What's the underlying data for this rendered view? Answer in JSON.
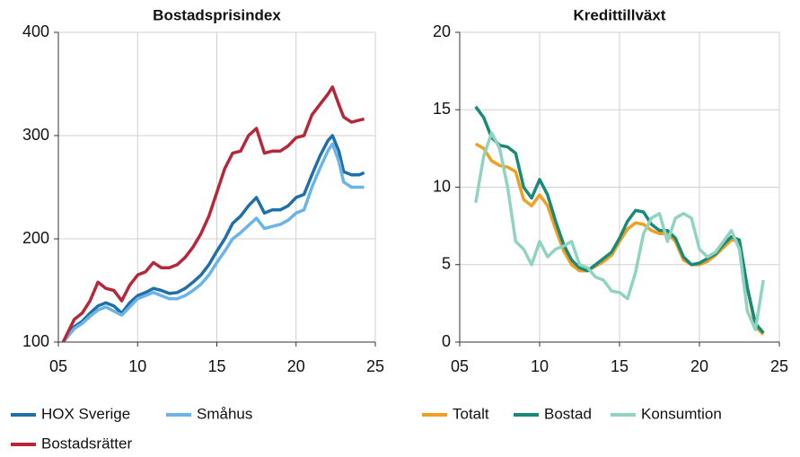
{
  "chart_data": [
    {
      "type": "line",
      "title": "Bostadsprisindex",
      "x": [
        2005.3,
        2006,
        2006.5,
        2007,
        2007.5,
        2008,
        2008.5,
        2009,
        2009.5,
        2010,
        2010.5,
        2011,
        2011.5,
        2012,
        2012.5,
        2013,
        2013.5,
        2014,
        2014.5,
        2015,
        2015.5,
        2016,
        2016.5,
        2017,
        2017.5,
        2018,
        2018.5,
        2019,
        2019.5,
        2020,
        2020.5,
        2021,
        2021.5,
        2022,
        2022.3,
        2022.7,
        2023,
        2023.5,
        2024,
        2024.3
      ],
      "series": [
        {
          "name": "HOX Sverige",
          "color": "#1f6fa8",
          "values": [
            100,
            115,
            120,
            128,
            135,
            138,
            135,
            128,
            138,
            145,
            148,
            152,
            150,
            147,
            148,
            152,
            158,
            165,
            175,
            188,
            200,
            215,
            222,
            232,
            240,
            225,
            228,
            228,
            232,
            240,
            243,
            262,
            280,
            295,
            300,
            285,
            265,
            262,
            262,
            264
          ]
        },
        {
          "name": "Småhus",
          "color": "#6ab4e8",
          "values": [
            100,
            113,
            118,
            125,
            131,
            134,
            130,
            126,
            134,
            142,
            145,
            148,
            145,
            142,
            142,
            145,
            150,
            156,
            165,
            177,
            188,
            200,
            206,
            213,
            220,
            210,
            212,
            214,
            218,
            225,
            228,
            250,
            268,
            285,
            292,
            275,
            255,
            250,
            250,
            250
          ]
        },
        {
          "name": "Bostadsrätter",
          "color": "#b5283a",
          "values": [
            100,
            122,
            128,
            140,
            158,
            152,
            150,
            140,
            155,
            165,
            168,
            177,
            172,
            172,
            175,
            182,
            192,
            205,
            222,
            245,
            268,
            283,
            285,
            300,
            307,
            283,
            285,
            285,
            290,
            298,
            300,
            320,
            330,
            340,
            347,
            330,
            318,
            313,
            315,
            316
          ]
        }
      ],
      "xlim": [
        2005,
        2025
      ],
      "xticks": [
        {
          "value": 2005,
          "label": "05"
        },
        {
          "value": 2010,
          "label": "10"
        },
        {
          "value": 2015,
          "label": "15"
        },
        {
          "value": 2020,
          "label": "20"
        },
        {
          "value": 2025,
          "label": "25"
        }
      ],
      "ylim": [
        100,
        400
      ],
      "yticks": [
        100,
        200,
        300,
        400
      ],
      "grid": true
    },
    {
      "type": "line",
      "title": "Kredittillväxt",
      "x": [
        2006,
        2006.5,
        2007,
        2007.5,
        2008,
        2008.5,
        2009,
        2009.5,
        2010,
        2010.5,
        2011,
        2011.5,
        2012,
        2012.5,
        2013,
        2013.5,
        2014,
        2014.5,
        2015,
        2015.5,
        2016,
        2016.5,
        2017,
        2017.5,
        2018,
        2018.5,
        2019,
        2019.5,
        2020,
        2020.5,
        2021,
        2021.5,
        2022,
        2022.5,
        2023,
        2023.5,
        2024
      ],
      "series": [
        {
          "name": "Totalt",
          "color": "#f0a01e",
          "values": [
            12.8,
            12.5,
            11.7,
            11.4,
            11.3,
            11,
            9.2,
            8.8,
            9.5,
            8.8,
            7.3,
            5.9,
            5.0,
            4.6,
            4.6,
            4.9,
            5.2,
            5.6,
            6.5,
            7.3,
            7.7,
            7.6,
            7.2,
            7.0,
            7.0,
            6.5,
            5.3,
            5.0,
            5.0,
            5.2,
            5.6,
            6.1,
            6.6,
            6.5,
            3.5,
            1.0,
            0.5
          ]
        },
        {
          "name": "Bostad",
          "color": "#1a8a78",
          "values": [
            15.2,
            14.5,
            13.2,
            12.7,
            12.6,
            12.2,
            10,
            9.3,
            10.5,
            9.5,
            7.8,
            6.3,
            5.3,
            4.8,
            4.6,
            5,
            5.4,
            5.8,
            6.7,
            7.8,
            8.5,
            8.4,
            7.6,
            7.2,
            7.2,
            6.7,
            5.5,
            5.0,
            5.1,
            5.4,
            5.7,
            6.3,
            6.8,
            6.6,
            3.5,
            1.2,
            0.6
          ]
        },
        {
          "name": "Konsumtion",
          "color": "#8fd3c0",
          "values": [
            9,
            12,
            13.5,
            12.5,
            10,
            6.5,
            6,
            5,
            6.5,
            5.5,
            6,
            6.2,
            6.5,
            5,
            4.8,
            4.2,
            4,
            3.3,
            3.2,
            2.8,
            4.5,
            7,
            8,
            8.3,
            6.5,
            8,
            8.3,
            8,
            6,
            5.5,
            5.8,
            6.5,
            7.2,
            6,
            2,
            0.8,
            4
          ]
        }
      ],
      "xlim": [
        2005,
        2025
      ],
      "xticks": [
        {
          "value": 2005,
          "label": "05"
        },
        {
          "value": 2010,
          "label": "10"
        },
        {
          "value": 2015,
          "label": "15"
        },
        {
          "value": 2020,
          "label": "20"
        },
        {
          "value": 2025,
          "label": "25"
        }
      ],
      "ylim": [
        0,
        20
      ],
      "yticks": [
        0,
        5,
        10,
        15,
        20
      ],
      "grid": true
    }
  ]
}
